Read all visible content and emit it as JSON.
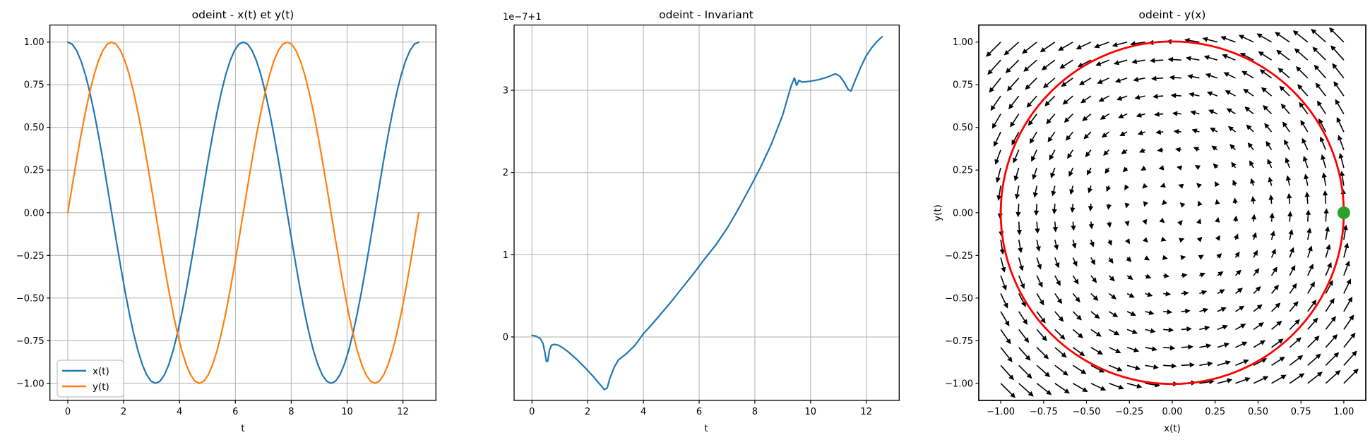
{
  "figure": {
    "background": "#ffffff"
  },
  "colors": {
    "blue": "#1f77b4",
    "orange": "#ff7f0e",
    "red": "#ff0000",
    "green": "#2ca02c",
    "grid": "#b0b0b0",
    "spine": "#000000",
    "arrow": "#000000",
    "legend_border": "#b3b3b3",
    "text": "#000000"
  },
  "chart_data": [
    {
      "id": "xy-time",
      "type": "line",
      "title": "odeint - x(t) et y(t)",
      "xlabel": "t",
      "grid": true,
      "xlim": [
        -0.64,
        13.18
      ],
      "ylim": [
        -1.1,
        1.1
      ],
      "xticks": {
        "values": [
          0,
          2,
          4,
          6,
          8,
          10,
          12
        ],
        "labels": [
          "0",
          "2",
          "4",
          "6",
          "8",
          "10",
          "12"
        ]
      },
      "yticks": {
        "values": [
          1.0,
          0.75,
          0.5,
          0.25,
          0.0,
          -0.25,
          -0.5,
          -0.75,
          -1.0
        ],
        "labels": [
          "1.00",
          "0.75",
          "0.50",
          "0.25",
          "0.00",
          "−0.25",
          "−0.50",
          "−0.75",
          "−1.00"
        ]
      },
      "legend": {
        "position": "lower left"
      },
      "series": [
        {
          "name": "x(t)",
          "color_key": "blue",
          "x": [
            0,
            0.157,
            0.314,
            0.471,
            0.628,
            0.785,
            0.942,
            1.1,
            1.257,
            1.414,
            1.571,
            1.728,
            1.885,
            2.042,
            2.199,
            2.356,
            2.513,
            2.67,
            2.827,
            2.985,
            3.142,
            3.299,
            3.456,
            3.613,
            3.77,
            3.927,
            4.084,
            4.241,
            4.398,
            4.555,
            4.712,
            4.869,
            5.027,
            5.184,
            5.341,
            5.498,
            5.655,
            5.812,
            5.969,
            6.126,
            6.283,
            6.44,
            6.597,
            6.754,
            6.912,
            7.069,
            7.226,
            7.383,
            7.54,
            7.697,
            7.854,
            8.011,
            8.168,
            8.325,
            8.482,
            8.639,
            8.796,
            8.954,
            9.111,
            9.268,
            9.425,
            9.582,
            9.739,
            9.896,
            10.053,
            10.21,
            10.367,
            10.524,
            10.681,
            10.839,
            10.996,
            11.153,
            11.31,
            11.467,
            11.624,
            11.781,
            11.938,
            12.095,
            12.252,
            12.409,
            12.566
          ],
          "y": [
            1.0,
            0.988,
            0.951,
            0.891,
            0.809,
            0.707,
            0.588,
            0.454,
            0.309,
            0.156,
            0.0,
            -0.156,
            -0.309,
            -0.454,
            -0.588,
            -0.707,
            -0.809,
            -0.891,
            -0.951,
            -0.988,
            -1.0,
            -0.988,
            -0.951,
            -0.891,
            -0.809,
            -0.707,
            -0.588,
            -0.454,
            -0.309,
            -0.156,
            0.0,
            0.156,
            0.309,
            0.454,
            0.588,
            0.707,
            0.809,
            0.891,
            0.951,
            0.988,
            1.0,
            0.988,
            0.951,
            0.891,
            0.809,
            0.707,
            0.588,
            0.454,
            0.309,
            0.156,
            0.0,
            -0.156,
            -0.309,
            -0.454,
            -0.588,
            -0.707,
            -0.809,
            -0.891,
            -0.951,
            -0.988,
            -1.0,
            -0.988,
            -0.951,
            -0.891,
            -0.809,
            -0.707,
            -0.588,
            -0.454,
            -0.309,
            -0.156,
            0.0,
            0.156,
            0.309,
            0.454,
            0.588,
            0.707,
            0.809,
            0.891,
            0.951,
            0.988,
            1.0
          ]
        },
        {
          "name": "y(t)",
          "color_key": "orange",
          "x": [
            0,
            0.157,
            0.314,
            0.471,
            0.628,
            0.785,
            0.942,
            1.1,
            1.257,
            1.414,
            1.571,
            1.728,
            1.885,
            2.042,
            2.199,
            2.356,
            2.513,
            2.67,
            2.827,
            2.985,
            3.142,
            3.299,
            3.456,
            3.613,
            3.77,
            3.927,
            4.084,
            4.241,
            4.398,
            4.555,
            4.712,
            4.869,
            5.027,
            5.184,
            5.341,
            5.498,
            5.655,
            5.812,
            5.969,
            6.126,
            6.283,
            6.44,
            6.597,
            6.754,
            6.912,
            7.069,
            7.226,
            7.383,
            7.54,
            7.697,
            7.854,
            8.011,
            8.168,
            8.325,
            8.482,
            8.639,
            8.796,
            8.954,
            9.111,
            9.268,
            9.425,
            9.582,
            9.739,
            9.896,
            10.053,
            10.21,
            10.367,
            10.524,
            10.681,
            10.839,
            10.996,
            11.153,
            11.31,
            11.467,
            11.624,
            11.781,
            11.938,
            12.095,
            12.252,
            12.409,
            12.566
          ],
          "y": [
            0.0,
            0.156,
            0.309,
            0.454,
            0.588,
            0.707,
            0.809,
            0.891,
            0.951,
            0.988,
            1.0,
            0.988,
            0.951,
            0.891,
            0.809,
            0.707,
            0.588,
            0.454,
            0.309,
            0.156,
            0.0,
            -0.156,
            -0.309,
            -0.454,
            -0.588,
            -0.707,
            -0.809,
            -0.891,
            -0.951,
            -0.988,
            -1.0,
            -0.988,
            -0.951,
            -0.891,
            -0.809,
            -0.707,
            -0.588,
            -0.454,
            -0.309,
            -0.156,
            0.0,
            0.156,
            0.309,
            0.454,
            0.588,
            0.707,
            0.809,
            0.891,
            0.951,
            0.988,
            1.0,
            0.988,
            0.951,
            0.891,
            0.809,
            0.707,
            0.588,
            0.454,
            0.309,
            0.156,
            0.0,
            -0.156,
            -0.309,
            -0.454,
            -0.588,
            -0.707,
            -0.809,
            -0.891,
            -0.951,
            -0.988,
            -1.0,
            -0.988,
            -0.951,
            -0.891,
            -0.809,
            -0.707,
            -0.588,
            -0.454,
            -0.309,
            -0.156,
            0.0
          ]
        }
      ]
    },
    {
      "id": "invariant",
      "type": "line",
      "title": "odeint - Invariant",
      "xlabel": "t",
      "offset_text": "1e−7+1",
      "grid": true,
      "xlim": [
        -0.64,
        13.18
      ],
      "ylim": [
        -0.771,
        3.793
      ],
      "xticks": {
        "values": [
          0,
          2,
          4,
          6,
          8,
          10,
          12
        ],
        "labels": [
          "0",
          "2",
          "4",
          "6",
          "8",
          "10",
          "12"
        ]
      },
      "yticks": {
        "values": [
          0,
          1,
          2,
          3
        ],
        "labels": [
          "0",
          "1",
          "2",
          "3"
        ]
      },
      "y_unit_note": "values are (invariant - 1) in units of 1e-7",
      "series": [
        {
          "name": "invariant",
          "color_key": "blue",
          "x": [
            0,
            0.15,
            0.3,
            0.4,
            0.47,
            0.52,
            0.57,
            0.63,
            0.7,
            0.8,
            0.95,
            1.1,
            1.3,
            1.6,
            1.9,
            2.2,
            2.45,
            2.6,
            2.7,
            2.8,
            2.95,
            3.1,
            3.4,
            3.7,
            4.0,
            4.3,
            4.6,
            5.0,
            5.4,
            5.8,
            6.2,
            6.6,
            7.0,
            7.4,
            7.8,
            8.2,
            8.6,
            9.0,
            9.3,
            9.42,
            9.5,
            9.58,
            9.7,
            10.0,
            10.3,
            10.6,
            10.9,
            11.05,
            11.2,
            11.35,
            11.45,
            11.6,
            11.8,
            12.0,
            12.2,
            12.35,
            12.5,
            12.57
          ],
          "y": [
            0.02,
            0.01,
            -0.02,
            -0.08,
            -0.2,
            -0.3,
            -0.29,
            -0.16,
            -0.1,
            -0.09,
            -0.1,
            -0.13,
            -0.18,
            -0.27,
            -0.37,
            -0.48,
            -0.58,
            -0.64,
            -0.62,
            -0.5,
            -0.37,
            -0.28,
            -0.2,
            -0.1,
            0.04,
            0.15,
            0.27,
            0.43,
            0.6,
            0.77,
            0.95,
            1.12,
            1.32,
            1.55,
            1.8,
            2.06,
            2.35,
            2.7,
            3.05,
            3.15,
            3.06,
            3.12,
            3.1,
            3.11,
            3.13,
            3.16,
            3.2,
            3.17,
            3.1,
            3.01,
            2.99,
            3.12,
            3.28,
            3.42,
            3.52,
            3.58,
            3.63,
            3.65
          ]
        }
      ]
    },
    {
      "id": "phase-portrait",
      "type": "quiver-line",
      "title": "odeint - y(x)",
      "xlabel": "x(t)",
      "ylabel": "y(t)",
      "grid": false,
      "xlim": [
        -1.128,
        1.128
      ],
      "ylim": [
        -1.1,
        1.1
      ],
      "xticks": {
        "values": [
          -1.0,
          -0.75,
          -0.5,
          -0.25,
          0.0,
          0.25,
          0.5,
          0.75,
          1.0
        ],
        "labels": [
          "−1.00",
          "−0.75",
          "−0.50",
          "−0.25",
          "0.00",
          "0.25",
          "0.50",
          "0.75",
          "1.00"
        ]
      },
      "yticks": {
        "values": [
          1.0,
          0.75,
          0.5,
          0.25,
          0.0,
          -0.25,
          -0.5,
          -0.75,
          -1.0
        ],
        "labels": [
          "1.00",
          "0.75",
          "0.50",
          "0.25",
          "0.00",
          "−0.25",
          "−0.50",
          "−0.75",
          "−1.00"
        ]
      },
      "quiver": {
        "grid_n": 20,
        "min": -1.0,
        "max": 1.0,
        "field": "u = -y, v = x",
        "color_key": "arrow"
      },
      "trajectory": {
        "shape": "circle",
        "center": [
          0,
          0
        ],
        "radius": 1.0,
        "color_key": "red"
      },
      "start_point": {
        "x": 1.0,
        "y": 0.0,
        "color_key": "green"
      }
    }
  ]
}
